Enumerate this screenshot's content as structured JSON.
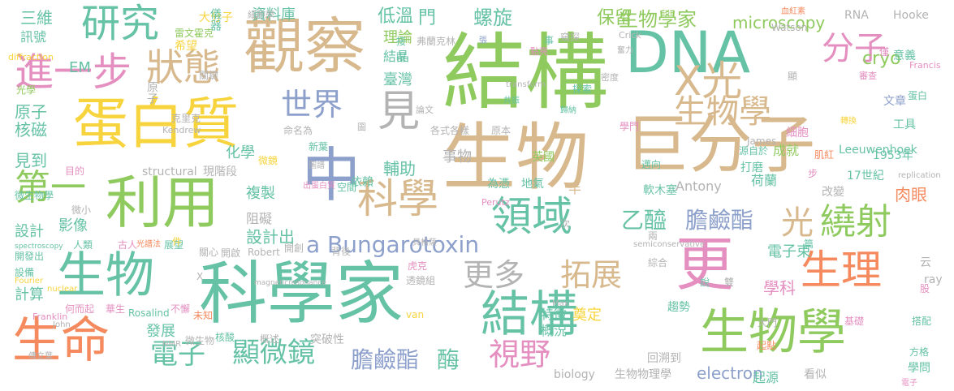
{
  "palette": {
    "green": "#8fca5e",
    "teal": "#66c2a5",
    "tan": "#d8b98e",
    "orange": "#f58a5f",
    "pink": "#e48fc0",
    "blue": "#8da0cb",
    "yellow": "#f7d43e",
    "gray": "#b3b3b3"
  },
  "words": [
    {
      "text": "結構",
      "color": "green"
    },
    {
      "text": "科學家",
      "color": "teal"
    },
    {
      "text": "生物",
      "color": "tan"
    },
    {
      "text": "DNA",
      "color": "teal"
    },
    {
      "text": "巨分子",
      "color": "tan"
    },
    {
      "text": "觀察",
      "color": "tan"
    },
    {
      "text": "蛋白質",
      "color": "yellow"
    },
    {
      "text": "更",
      "color": "pink"
    },
    {
      "text": "中",
      "color": "blue"
    },
    {
      "text": "結構",
      "color": "teal"
    },
    {
      "text": "生物學",
      "color": "green"
    },
    {
      "text": "利用",
      "color": "green"
    },
    {
      "text": "生物",
      "color": "teal"
    },
    {
      "text": "生命",
      "color": "orange"
    },
    {
      "text": "進一步",
      "color": "pink"
    },
    {
      "text": "研究",
      "color": "teal"
    },
    {
      "text": "狀態",
      "color": "tan"
    },
    {
      "text": "X光",
      "color": "tan"
    },
    {
      "text": "科學",
      "color": "tan"
    },
    {
      "text": "領域",
      "color": "teal"
    },
    {
      "text": "生理",
      "color": "orange"
    },
    {
      "text": "見",
      "color": "gray"
    },
    {
      "text": "第一",
      "color": "green"
    },
    {
      "text": "世界",
      "color": "blue"
    },
    {
      "text": "分子",
      "color": "pink"
    },
    {
      "text": "生物學",
      "color": "tan"
    },
    {
      "text": "繞射",
      "color": "green"
    },
    {
      "text": "更多",
      "color": "gray"
    },
    {
      "text": "拓展",
      "color": "tan"
    },
    {
      "text": "視野",
      "color": "pink"
    },
    {
      "text": "顯微鏡",
      "color": "teal"
    },
    {
      "text": "電子",
      "color": "teal"
    },
    {
      "text": "光",
      "color": "tan"
    },
    {
      "text": "a Bungarotoxin",
      "color": "blue"
    },
    {
      "text": "乙醯",
      "color": "teal"
    },
    {
      "text": "膽鹼酯",
      "color": "blue"
    },
    {
      "text": "膽鹼酯",
      "color": "blue"
    },
    {
      "text": "酶",
      "color": "teal"
    },
    {
      "text": "electron",
      "color": "blue"
    },
    {
      "text": "生物學家",
      "color": "green"
    },
    {
      "text": "microscopy",
      "color": "green"
    },
    {
      "text": "cryo",
      "color": "green"
    },
    {
      "text": "螺旋",
      "color": "teal"
    },
    {
      "text": "低溫",
      "color": "teal"
    },
    {
      "text": "門",
      "color": "teal"
    },
    {
      "text": "理論",
      "color": "green"
    },
    {
      "text": "保留",
      "color": "green"
    },
    {
      "text": "三維",
      "color": "teal"
    },
    {
      "text": "訊號",
      "color": "teal"
    },
    {
      "text": "EM",
      "color": "teal"
    },
    {
      "text": "原子",
      "color": "teal"
    },
    {
      "text": "核磁",
      "color": "teal"
    },
    {
      "text": "見到",
      "color": "teal"
    },
    {
      "text": "資料庫",
      "color": "teal"
    },
    {
      "text": "大分子",
      "color": "yellow"
    },
    {
      "text": "儀器",
      "color": "teal"
    },
    {
      "text": "結晶",
      "color": "teal"
    },
    {
      "text": "臺灣",
      "color": "teal"
    },
    {
      "text": "化學",
      "color": "teal"
    },
    {
      "text": "輔助",
      "color": "teal"
    },
    {
      "text": "事物",
      "color": "gray"
    },
    {
      "text": "半",
      "color": "tan"
    },
    {
      "text": "複製",
      "color": "teal"
    },
    {
      "text": "阻礙",
      "color": "gray"
    },
    {
      "text": "設計出",
      "color": "teal"
    },
    {
      "text": "學科",
      "color": "pink"
    },
    {
      "text": "電子束",
      "color": "teal"
    },
    {
      "text": "奠定",
      "color": "yellow"
    },
    {
      "text": "計算",
      "color": "teal"
    },
    {
      "text": "設計",
      "color": "teal"
    },
    {
      "text": "影像",
      "color": "teal"
    },
    {
      "text": "發展",
      "color": "teal"
    },
    {
      "text": "特徵",
      "color": "teal"
    },
    {
      "text": "概況",
      "color": "teal"
    },
    {
      "text": "突破性",
      "color": "gray"
    },
    {
      "text": "biology",
      "color": "gray"
    },
    {
      "text": "生物物理學",
      "color": "gray"
    },
    {
      "text": "起源",
      "color": "teal"
    },
    {
      "text": "看似",
      "color": "gray"
    },
    {
      "text": "學問",
      "color": "teal"
    },
    {
      "text": "回溯到",
      "color": "gray"
    },
    {
      "text": "趨勢",
      "color": "teal"
    },
    {
      "text": "成就",
      "color": "green"
    },
    {
      "text": "肉眼",
      "color": "orange"
    },
    {
      "text": "17世紀",
      "color": "teal"
    },
    {
      "text": "荷蘭",
      "color": "teal"
    },
    {
      "text": "Antony",
      "color": "gray"
    },
    {
      "text": "Leeuwenhoek",
      "color": "teal"
    },
    {
      "text": "工具",
      "color": "teal"
    },
    {
      "text": "細胞",
      "color": "pink"
    },
    {
      "text": "文章",
      "color": "blue"
    },
    {
      "text": "意義",
      "color": "teal"
    },
    {
      "text": "Hooke",
      "color": "gray"
    },
    {
      "text": "RNA",
      "color": "gray"
    },
    {
      "text": "Watson",
      "color": "gray"
    },
    {
      "text": "Francis",
      "color": "pink"
    },
    {
      "text": "Crick",
      "color": "gray"
    },
    {
      "text": "structural",
      "color": "gray"
    },
    {
      "text": "現階段",
      "color": "gray"
    },
    {
      "text": "依賴",
      "color": "teal"
    },
    {
      "text": "新葉",
      "color": "teal"
    },
    {
      "text": "各式各樣",
      "color": "gray"
    },
    {
      "text": "原本",
      "color": "gray"
    },
    {
      "text": "英國",
      "color": "green"
    },
    {
      "text": "地氣",
      "color": "teal"
    },
    {
      "text": "為憑",
      "color": "teal"
    },
    {
      "text": "軟木塞",
      "color": "teal"
    },
    {
      "text": "打磨",
      "color": "teal"
    },
    {
      "text": "改變",
      "color": "gray"
    },
    {
      "text": "1953年",
      "color": "teal"
    },
    {
      "text": "希望",
      "color": "yellow"
    },
    {
      "text": "原子",
      "color": "gray"
    },
    {
      "text": "光學",
      "color": "green"
    },
    {
      "text": "diffraction",
      "color": "yellow"
    },
    {
      "text": "雷文霍克",
      "color": "green"
    },
    {
      "text": "細胞學",
      "color": "gray"
    },
    {
      "text": "微生物學",
      "color": "teal"
    },
    {
      "text": "微小",
      "color": "gray"
    },
    {
      "text": "目的",
      "color": "pink"
    },
    {
      "text": "人類",
      "color": "teal"
    },
    {
      "text": "古人",
      "color": "pink"
    },
    {
      "text": "展望",
      "color": "teal"
    },
    {
      "text": "開發出",
      "color": "teal"
    },
    {
      "text": "設備",
      "color": "teal"
    },
    {
      "text": "何而起",
      "color": "pink"
    },
    {
      "text": "華生",
      "color": "pink"
    },
    {
      "text": "Rosalind",
      "color": "teal"
    },
    {
      "text": "Franklin",
      "color": "pink"
    },
    {
      "text": "Robert",
      "color": "gray"
    },
    {
      "text": "核酸",
      "color": "teal"
    },
    {
      "text": "概述",
      "color": "gray"
    },
    {
      "text": "微生物",
      "color": "gray"
    },
    {
      "text": "關心",
      "color": "gray"
    },
    {
      "text": "開啟",
      "color": "gray"
    },
    {
      "text": "開創",
      "color": "gray"
    },
    {
      "text": "背後",
      "color": "gray"
    },
    {
      "text": "虎克",
      "color": "pink"
    },
    {
      "text": "透鏡組",
      "color": "gray"
    },
    {
      "text": "兩",
      "color": "gray"
    },
    {
      "text": "次",
      "color": "gray"
    },
    {
      "text": "綜合",
      "color": "gray"
    },
    {
      "text": "大門",
      "color": "gray"
    },
    {
      "text": "學門",
      "color": "pink"
    },
    {
      "text": "源自於",
      "color": "teal"
    },
    {
      "text": "邁向",
      "color": "teal"
    },
    {
      "text": "探索",
      "color": "teal"
    },
    {
      "text": "窺探",
      "color": "gray"
    },
    {
      "text": "James",
      "color": "gray"
    },
    {
      "text": "van",
      "color": "yellow"
    },
    {
      "text": "Kendrew",
      "color": "gray"
    },
    {
      "text": "Perutz",
      "color": "pink"
    },
    {
      "text": "spectroscopy",
      "color": "teal"
    },
    {
      "text": "transform",
      "color": "gray"
    },
    {
      "text": "nuclear",
      "color": "yellow"
    },
    {
      "text": "Fourier",
      "color": "yellow"
    },
    {
      "text": "magneticresonance",
      "color": "gray"
    },
    {
      "text": "replication",
      "color": "gray"
    },
    {
      "text": "semiconservative",
      "color": "gray"
    },
    {
      "text": "NMR",
      "color": "gray"
    },
    {
      "text": "John",
      "color": "gray"
    },
    {
      "text": "Max",
      "color": "gray"
    },
    {
      "text": "ray",
      "color": "gray"
    },
    {
      "text": "關鍵",
      "color": "gray"
    },
    {
      "text": "克里克",
      "color": "gray"
    },
    {
      "text": "弗蘭克林",
      "color": "gray"
    },
    {
      "text": "命名為",
      "color": "gray"
    },
    {
      "text": "論文",
      "color": "gray"
    },
    {
      "text": "點亮",
      "color": "pink"
    },
    {
      "text": "共振",
      "color": "teal"
    },
    {
      "text": "歸納",
      "color": "teal"
    },
    {
      "text": "基礎",
      "color": "pink"
    },
    {
      "text": "搭配",
      "color": "teal"
    },
    {
      "text": "方格",
      "color": "teal"
    },
    {
      "text": "起點",
      "color": "orange"
    },
    {
      "text": "未知",
      "color": "orange"
    },
    {
      "text": "不懈",
      "color": "pink"
    },
    {
      "text": "說",
      "color": "teal"
    },
    {
      "text": "雙",
      "color": "gray"
    },
    {
      "text": "篇",
      "color": "teal"
    },
    {
      "text": "云",
      "color": "gray"
    },
    {
      "text": "股",
      "color": "pink"
    },
    {
      "text": "步",
      "color": "pink"
    },
    {
      "text": "件",
      "color": "yellow"
    },
    {
      "text": "X",
      "color": "gray"
    },
    {
      "text": "接",
      "color": "teal"
    },
    {
      "text": "眼",
      "color": "teal"
    },
    {
      "text": "事",
      "color": "teal"
    },
    {
      "text": "僅",
      "color": "pink"
    },
    {
      "text": "顯",
      "color": "gray"
    },
    {
      "text": "蛋白",
      "color": "teal"
    },
    {
      "text": "肌紅",
      "color": "orange"
    },
    {
      "text": "圖",
      "color": "gray"
    },
    {
      "text": "微鏡",
      "color": "yellow"
    },
    {
      "text": "出蛋白質",
      "color": "pink"
    },
    {
      "text": "空間",
      "color": "teal"
    },
    {
      "text": "張",
      "color": "blue"
    },
    {
      "text": "傳立葉",
      "color": "gray"
    },
    {
      "text": "電子",
      "color": "pink"
    },
    {
      "text": "光譜法",
      "color": "orange"
    },
    {
      "text": "貝格薩",
      "color": "gray"
    },
    {
      "text": "血紅素",
      "color": "orange"
    },
    {
      "text": "轉換",
      "color": "yellow"
    },
    {
      "text": "密度",
      "color": "gray"
    },
    {
      "text": "奮力",
      "color": "gray"
    },
    {
      "text": "審查",
      "color": "pink"
    },
    {
      "text": "圖譜",
      "color": "gray"
    },
    {
      "text": "壹",
      "color": "pink"
    }
  ]
}
